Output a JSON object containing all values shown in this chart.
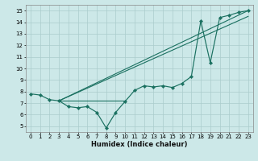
{
  "xlabel": "Humidex (Indice chaleur)",
  "xlim": [
    -0.5,
    23.5
  ],
  "ylim": [
    4.5,
    15.5
  ],
  "yticks": [
    5,
    6,
    7,
    8,
    9,
    10,
    11,
    12,
    13,
    14,
    15
  ],
  "xticks": [
    0,
    1,
    2,
    3,
    4,
    5,
    6,
    7,
    8,
    9,
    10,
    11,
    12,
    13,
    14,
    15,
    16,
    17,
    18,
    19,
    20,
    21,
    22,
    23
  ],
  "bg_color": "#cce8e8",
  "grid_color": "#aacccc",
  "line_color": "#1a7060",
  "data_x": [
    0,
    1,
    2,
    3,
    4,
    5,
    6,
    7,
    8,
    9,
    10,
    11,
    12,
    13,
    14,
    15,
    16,
    17,
    18,
    19,
    20,
    21,
    22,
    23
  ],
  "data_y": [
    7.8,
    7.7,
    7.3,
    7.2,
    6.7,
    6.6,
    6.7,
    6.2,
    4.85,
    6.2,
    7.15,
    8.1,
    8.5,
    8.4,
    8.5,
    8.35,
    8.7,
    9.3,
    14.1,
    10.5,
    14.4,
    14.6,
    14.85,
    15.0
  ],
  "ref_lines": [
    {
      "x0": 3.0,
      "y0": 7.2,
      "x1": 23.0,
      "y1": 15.0
    },
    {
      "x0": 3.0,
      "y0": 7.2,
      "x1": 23.0,
      "y1": 14.5
    },
    {
      "x0": 3.0,
      "y0": 7.2,
      "x1": 10.0,
      "y1": 7.2
    }
  ]
}
